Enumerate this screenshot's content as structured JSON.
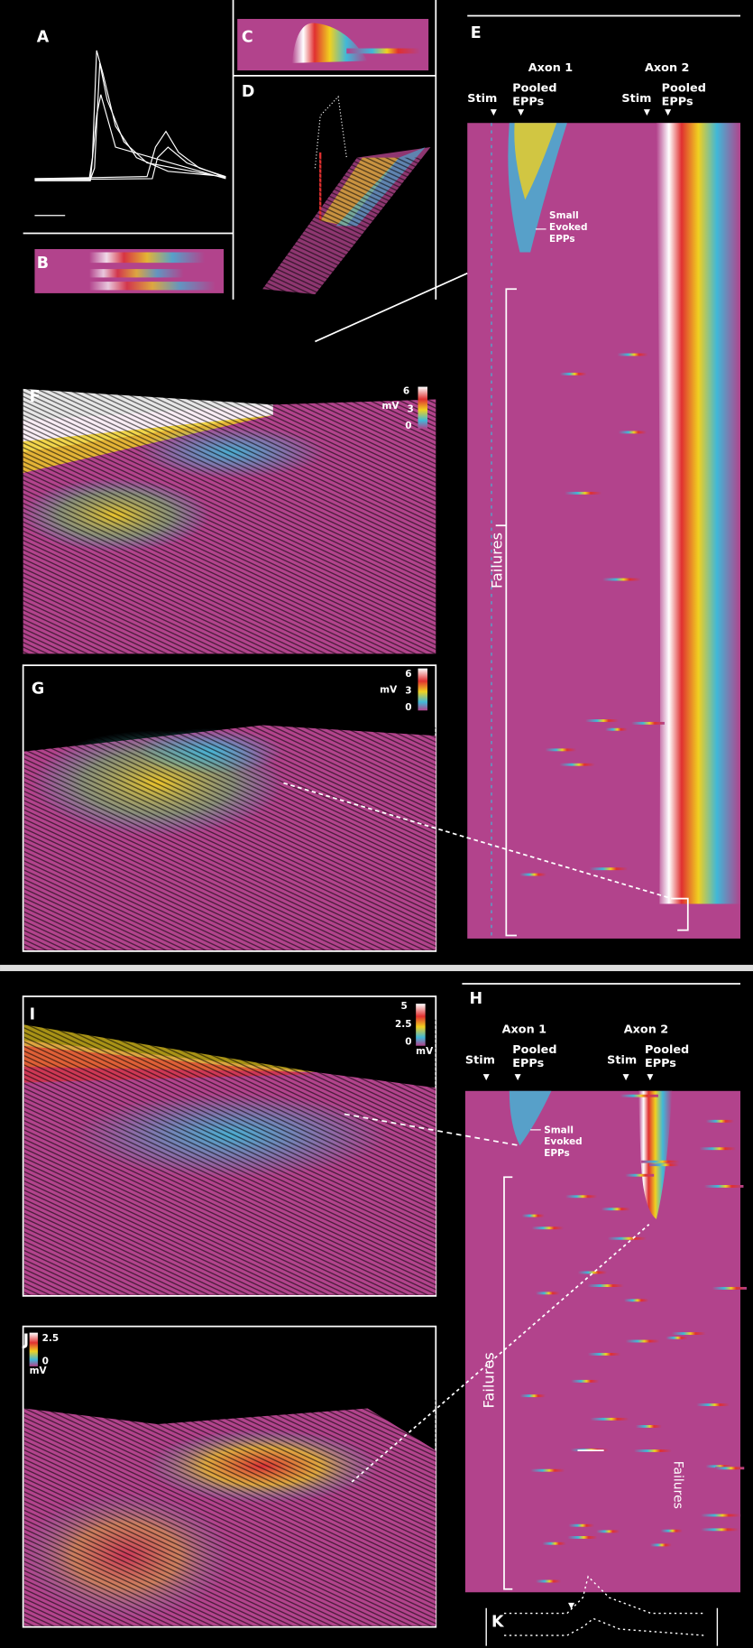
{
  "panel_labels": [
    "A",
    "B",
    "C",
    "D",
    "E",
    "F",
    "G",
    "H",
    "I",
    "J",
    "K"
  ],
  "panel_E": {
    "axon_1": "Axon 1",
    "axon_2": "Axon 2",
    "stim_1": "Stim",
    "pooled_1": [
      "Pooled",
      "EPPs"
    ],
    "stim_2": "Stim",
    "pooled_2": [
      "Pooled",
      "EPPs"
    ],
    "annotation": [
      "Small",
      "Evoked",
      "EPPs"
    ],
    "failures": "Failures"
  },
  "panel_F": {
    "colorbar_ticks": [
      "6",
      "3",
      "0"
    ],
    "unit": "mV"
  },
  "panel_G": {
    "colorbar_ticks": [
      "6",
      "3",
      "0"
    ],
    "unit": "mV"
  },
  "panel_H": {
    "axon_1": "Axon 1",
    "axon_2": "Axon 2",
    "stim_1": "Stim",
    "pooled_1": [
      "Pooled",
      "EPPs"
    ],
    "stim_2": "Stim",
    "pooled_2": [
      "Pooled",
      "EPPs"
    ],
    "annotation": [
      "Small",
      "Evoked",
      "EPPs"
    ],
    "failures_1": "Failures",
    "failures_2": "Failures"
  },
  "panel_I": {
    "colorbar_ticks": [
      "5",
      "2.5",
      "0"
    ],
    "unit": "mV"
  },
  "panel_J": {
    "colorbar_ticks": [
      "2.5",
      "0"
    ],
    "unit": "mV"
  }
}
